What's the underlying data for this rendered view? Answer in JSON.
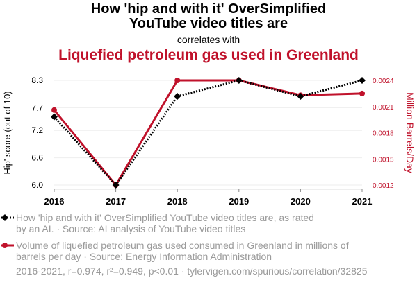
{
  "header": {
    "title_line1": "How 'hip and with it' OverSimplified",
    "title_line2": "YouTube video titles are",
    "subtitle": "correlates with",
    "title_line3": "Liquefied petroleum gas used in Greenland"
  },
  "colors": {
    "series1": "#000000",
    "series2": "#c0122b",
    "grid": "#eeeeee",
    "muted": "#9a9a9a"
  },
  "chart_data": {
    "type": "line",
    "x": [
      2016,
      2017,
      2018,
      2019,
      2020,
      2021
    ],
    "x_tick_labels": [
      "2016",
      "2017",
      "2018",
      "2019",
      "2020",
      "2021"
    ],
    "ylabel_left": "Hip' score (out of 10)",
    "ylabel_right": "Million Barrels/Day",
    "ylim_left": [
      6.0,
      8.3
    ],
    "yticks_left": [
      "6.0",
      "6.6",
      "7.2",
      "7.7",
      "8.3"
    ],
    "ylim_right": [
      0.0012,
      0.0024
    ],
    "yticks_right": [
      "0.0012",
      "0.0015",
      "0.0018",
      "0.0021",
      "0.0024"
    ],
    "grid": true,
    "series": [
      {
        "values": [
          7.5,
          6.0,
          7.95,
          8.3,
          7.95,
          8.3
        ],
        "axis": "left",
        "style": "dotted",
        "marker": "diamond"
      },
      {
        "values": [
          0.00206,
          0.0012,
          0.0024,
          0.0024,
          0.00223,
          0.00225
        ],
        "axis": "right",
        "style": "solid",
        "marker": "circle"
      }
    ]
  },
  "legend": {
    "item1_line1": "How 'hip and with it' OverSimplified YouTube video titles are, as rated",
    "item1_line2": "by an AI. · Source: AI analysis of YouTube video titles",
    "item2_line1": "Volume of liquefied petroleum gas used consumed in Greenland in millions of",
    "item2_line2": "barrels per day · Source: Energy Information Administration"
  },
  "footer": "2016-2021, r=0.974, r²=0.949, p<0.01 · tylervigen.com/spurious/correlation/32825"
}
